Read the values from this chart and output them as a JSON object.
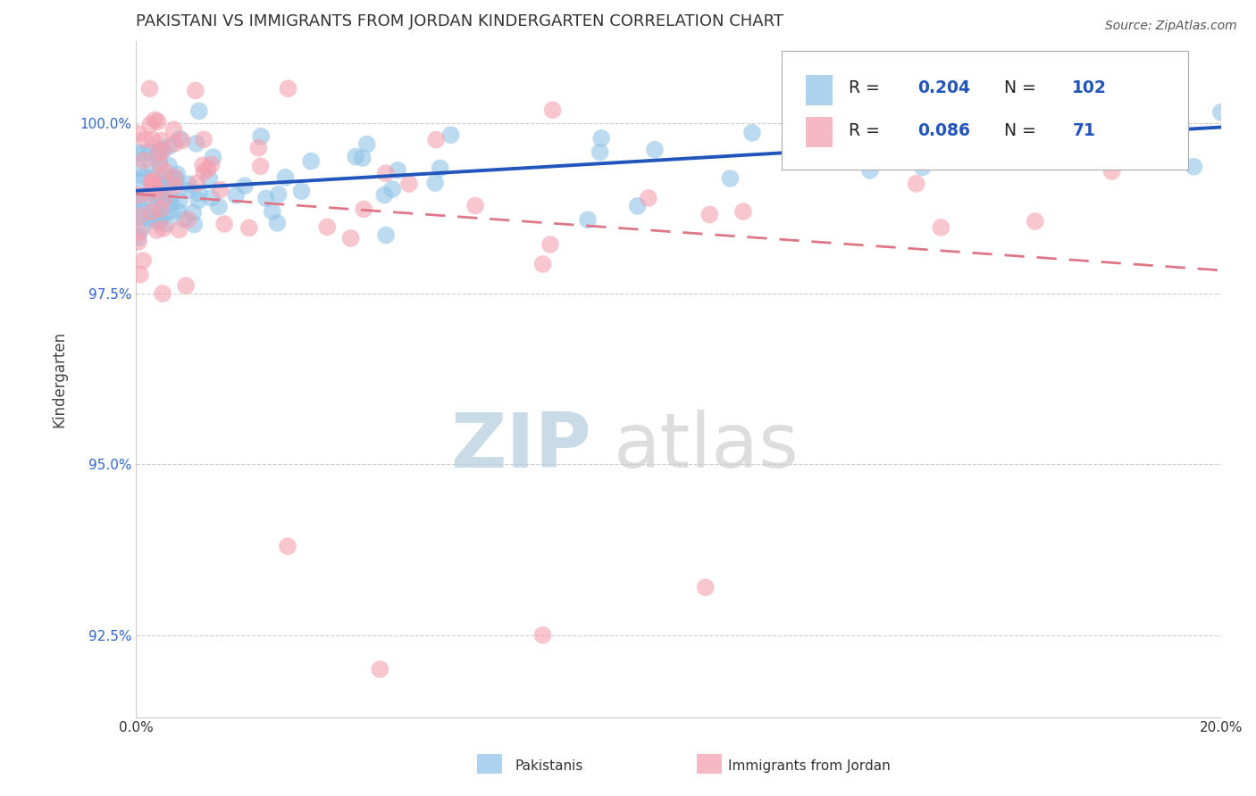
{
  "title": "PAKISTANI VS IMMIGRANTS FROM JORDAN KINDERGARTEN CORRELATION CHART",
  "source": "Source: ZipAtlas.com",
  "ylabel": "Kindergarten",
  "xlim": [
    0.0,
    20.0
  ],
  "ylim": [
    91.3,
    101.2
  ],
  "yticks": [
    92.5,
    95.0,
    97.5,
    100.0
  ],
  "ytick_labels": [
    "92.5%",
    "95.0%",
    "97.5%",
    "100.0%"
  ],
  "xticks": [
    0.0,
    5.0,
    10.0,
    15.0,
    20.0
  ],
  "xtick_labels": [
    "0.0%",
    "",
    "",
    "",
    "20.0%"
  ],
  "blue_R": 0.204,
  "blue_N": 102,
  "pink_R": 0.086,
  "pink_N": 71,
  "blue_color": "#90c4e8",
  "pink_color": "#f4a0b0",
  "blue_line_color": "#2255bb",
  "pink_line_color": "#dd7788",
  "legend_label_blue": "Pakistanis",
  "legend_label_pink": "Immigrants from Jordan",
  "watermark_zip": "ZIP",
  "watermark_atlas": "atlas",
  "blue_seed": 12,
  "pink_seed": 77
}
